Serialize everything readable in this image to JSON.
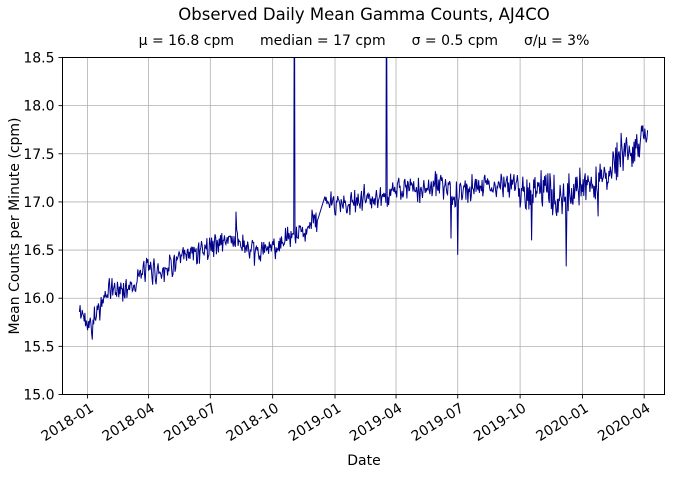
{
  "chart_data": {
    "type": "line",
    "title": "Observed Daily Mean Gamma Counts, AJ4CO",
    "stats": [
      "μ = 16.8 cpm",
      "median = 17 cpm",
      "σ = 0.5 cpm",
      "σ/μ = 3%"
    ],
    "xlabel": "Date",
    "ylabel": "Mean Counts per Minute (cpm)",
    "ylim": [
      15.0,
      18.5
    ],
    "yticks": [
      15.0,
      15.5,
      16.0,
      16.5,
      17.0,
      17.5,
      18.0,
      18.5
    ],
    "xticks": [
      "2018-01",
      "2018-04",
      "2018-07",
      "2018-10",
      "2019-01",
      "2019-04",
      "2019-07",
      "2019-10",
      "2020-01",
      "2020-04"
    ],
    "x_domain": [
      "2017-11-25",
      "2020-05-01"
    ],
    "series_start": "2017-12-20",
    "series_end": "2020-04-06",
    "grid": true,
    "legend": "none",
    "line_color": "#00008b",
    "grid_color": "#b0b0b0",
    "axis_color": "#000000",
    "noise_amplitude": 0.1,
    "noise_late_start": "2019-10-01",
    "noise_late_factor": 1.6,
    "seed": 42,
    "trend_keyframes": [
      {
        "date": "2017-12-20",
        "value": 15.85
      },
      {
        "date": "2018-01-05",
        "value": 15.75
      },
      {
        "date": "2018-01-20",
        "value": 15.92
      },
      {
        "date": "2018-02-05",
        "value": 16.1
      },
      {
        "date": "2018-02-20",
        "value": 16.08
      },
      {
        "date": "2018-03-10",
        "value": 16.15
      },
      {
        "date": "2018-03-28",
        "value": 16.3
      },
      {
        "date": "2018-04-15",
        "value": 16.27
      },
      {
        "date": "2018-05-05",
        "value": 16.35
      },
      {
        "date": "2018-05-25",
        "value": 16.42
      },
      {
        "date": "2018-06-15",
        "value": 16.5
      },
      {
        "date": "2018-07-05",
        "value": 16.55
      },
      {
        "date": "2018-07-28",
        "value": 16.62
      },
      {
        "date": "2018-08-12",
        "value": 16.6
      },
      {
        "date": "2018-09-01",
        "value": 16.45
      },
      {
        "date": "2018-09-20",
        "value": 16.5
      },
      {
        "date": "2018-10-08",
        "value": 16.55
      },
      {
        "date": "2018-10-28",
        "value": 16.62
      },
      {
        "date": "2018-11-12",
        "value": 16.68
      },
      {
        "date": "2018-11-28",
        "value": 16.8
      },
      {
        "date": "2018-12-08",
        "value": 16.82
      },
      {
        "date": "2018-12-18",
        "value": 16.98
      },
      {
        "date": "2019-01-05",
        "value": 17.0
      },
      {
        "date": "2019-01-25",
        "value": 16.97
      },
      {
        "date": "2019-02-15",
        "value": 17.05
      },
      {
        "date": "2019-03-05",
        "value": 17.0
      },
      {
        "date": "2019-03-25",
        "value": 17.1
      },
      {
        "date": "2019-04-15",
        "value": 17.15
      },
      {
        "date": "2019-05-05",
        "value": 17.1
      },
      {
        "date": "2019-06-01",
        "value": 17.2
      },
      {
        "date": "2019-06-25",
        "value": 17.05
      },
      {
        "date": "2019-07-20",
        "value": 17.15
      },
      {
        "date": "2019-08-10",
        "value": 17.2
      },
      {
        "date": "2019-09-01",
        "value": 17.15
      },
      {
        "date": "2019-09-25",
        "value": 17.2
      },
      {
        "date": "2019-10-15",
        "value": 17.1
      },
      {
        "date": "2019-11-05",
        "value": 17.15
      },
      {
        "date": "2019-11-25",
        "value": 17.0
      },
      {
        "date": "2019-12-12",
        "value": 17.1
      },
      {
        "date": "2020-01-01",
        "value": 17.2
      },
      {
        "date": "2020-01-20",
        "value": 17.15
      },
      {
        "date": "2020-02-10",
        "value": 17.35
      },
      {
        "date": "2020-03-01",
        "value": 17.5
      },
      {
        "date": "2020-03-22",
        "value": 17.6
      },
      {
        "date": "2020-04-06",
        "value": 17.7
      }
    ],
    "spikes": [
      {
        "date": "2018-01-08",
        "value": 15.57
      },
      {
        "date": "2018-08-08",
        "value": 16.9
      },
      {
        "date": "2018-11-02",
        "value": 19.8
      },
      {
        "date": "2019-03-18",
        "value": 19.6
      },
      {
        "date": "2019-06-21",
        "value": 16.62
      },
      {
        "date": "2019-07-01",
        "value": 16.45
      },
      {
        "date": "2019-10-18",
        "value": 16.6
      },
      {
        "date": "2019-12-08",
        "value": 16.33
      },
      {
        "date": "2020-01-24",
        "value": 16.85
      }
    ],
    "gaps": [
      {
        "start": "2018-12-07",
        "end": "2018-12-17"
      }
    ]
  }
}
